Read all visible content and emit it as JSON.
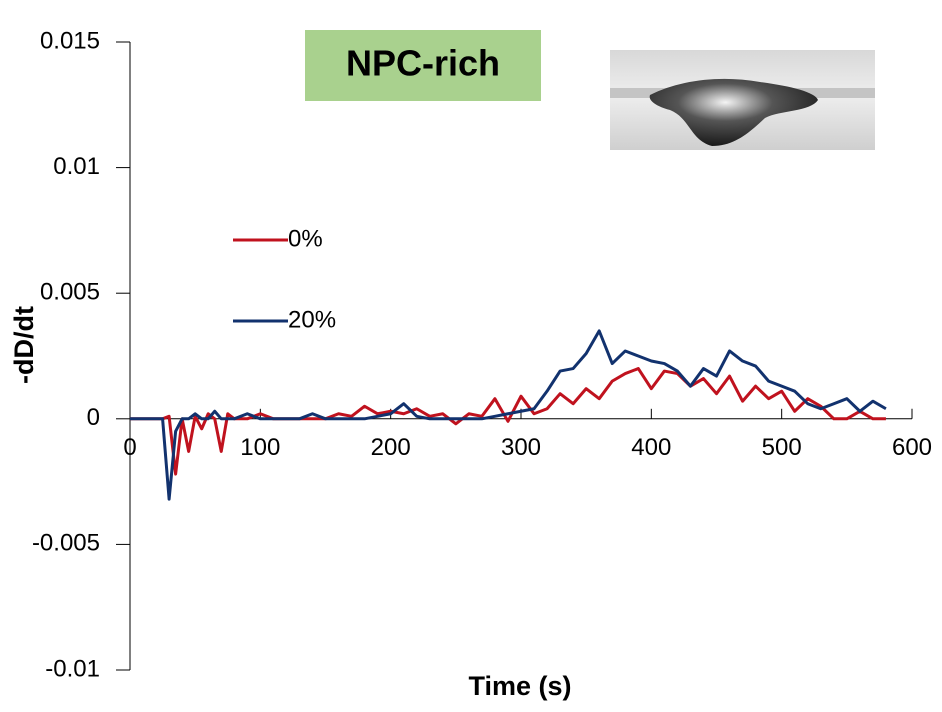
{
  "chart_data": {
    "type": "line",
    "annotation": "NPC-rich",
    "xlabel": "Time (s)",
    "ylabel": "-dD/dt",
    "x": [
      0,
      5,
      10,
      15,
      20,
      25,
      30,
      35,
      40,
      45,
      50,
      55,
      60,
      65,
      70,
      75,
      80,
      90,
      100,
      110,
      120,
      130,
      140,
      150,
      160,
      170,
      180,
      190,
      200,
      210,
      220,
      230,
      240,
      250,
      260,
      270,
      280,
      290,
      300,
      310,
      320,
      330,
      340,
      350,
      360,
      370,
      380,
      390,
      400,
      410,
      420,
      430,
      440,
      450,
      460,
      470,
      480,
      490,
      500,
      510,
      520,
      530,
      540,
      550,
      560,
      570,
      580
    ],
    "series": [
      {
        "name": "0%",
        "color": "#c0121e",
        "values": [
          0,
          0,
          0,
          0,
          0,
          0,
          0.0001,
          -0.0022,
          0,
          -0.0013,
          0.0001,
          -0.0004,
          0.0002,
          0,
          -0.0013,
          0.0002,
          0,
          0,
          0.0002,
          0,
          0,
          0,
          0,
          0,
          0.0002,
          0.0001,
          0.0005,
          0.0002,
          0.0003,
          0.0002,
          0.0004,
          0.0001,
          0.0002,
          -0.0002,
          0.0002,
          0.0001,
          0.0008,
          -0.0001,
          0.0009,
          0.0002,
          0.0004,
          0.001,
          0.0006,
          0.0012,
          0.0008,
          0.0015,
          0.0018,
          0.002,
          0.0012,
          0.0019,
          0.0018,
          0.0013,
          0.0016,
          0.001,
          0.0017,
          0.0007,
          0.0013,
          0.0008,
          0.0011,
          0.0003,
          0.0008,
          0.0005,
          0,
          0,
          0.0003,
          0,
          0
        ]
      },
      {
        "name": "20%",
        "color": "#12326e",
        "values": [
          0,
          0,
          0,
          0,
          0,
          0,
          -0.0032,
          -0.0005,
          0,
          0,
          0.0002,
          0,
          0,
          0.0003,
          0,
          0,
          0,
          0.0002,
          0,
          0,
          0,
          0,
          0.0002,
          0,
          0,
          0,
          0,
          0.0001,
          0.0002,
          0.0006,
          0.0001,
          0,
          0,
          0,
          0,
          0,
          0.0001,
          0.0002,
          0.0003,
          0.0004,
          0.0011,
          0.0019,
          0.002,
          0.0026,
          0.0035,
          0.0022,
          0.0027,
          0.0025,
          0.0023,
          0.0022,
          0.0019,
          0.0013,
          0.002,
          0.0017,
          0.0027,
          0.0023,
          0.0021,
          0.0015,
          0.0013,
          0.0011,
          0.0006,
          0.0004,
          0.0006,
          0.0008,
          0.0003,
          0.0007,
          0.0004
        ]
      }
    ],
    "xlim": [
      0,
      600
    ],
    "xticks": [
      0,
      100,
      200,
      300,
      400,
      500,
      600
    ],
    "ylim": [
      -0.01,
      0.015
    ],
    "yticks": [
      -0.01,
      -0.005,
      0,
      0.005,
      0.01,
      0.015
    ]
  }
}
